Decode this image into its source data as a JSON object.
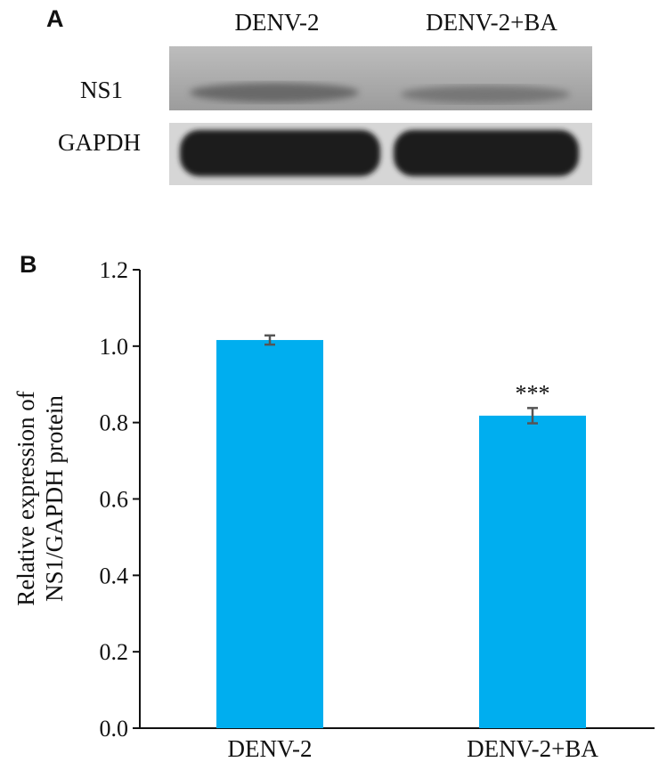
{
  "panel_a": {
    "label": "A",
    "lanes": [
      "DENV-2",
      "DENV-2+BA"
    ],
    "rows": [
      "NS1",
      "GAPDH"
    ]
  },
  "panel_b": {
    "label": "B"
  },
  "chart_data": {
    "type": "bar",
    "categories": [
      "DENV-2",
      "DENV-2+BA"
    ],
    "values": [
      1.016,
      0.818
    ],
    "errors": [
      0.012,
      0.02
    ],
    "annotations": [
      "",
      "***"
    ],
    "ylabel_line1": "Relative expression of",
    "ylabel_line2": "NS1/GAPDH protein",
    "ylim": [
      0,
      1.2
    ],
    "yticks": [
      "0.0",
      "0.2",
      "0.4",
      "0.6",
      "0.8",
      "1.0",
      "1.2"
    ],
    "bar_color": "#00aeef",
    "error_color": "#555555"
  }
}
